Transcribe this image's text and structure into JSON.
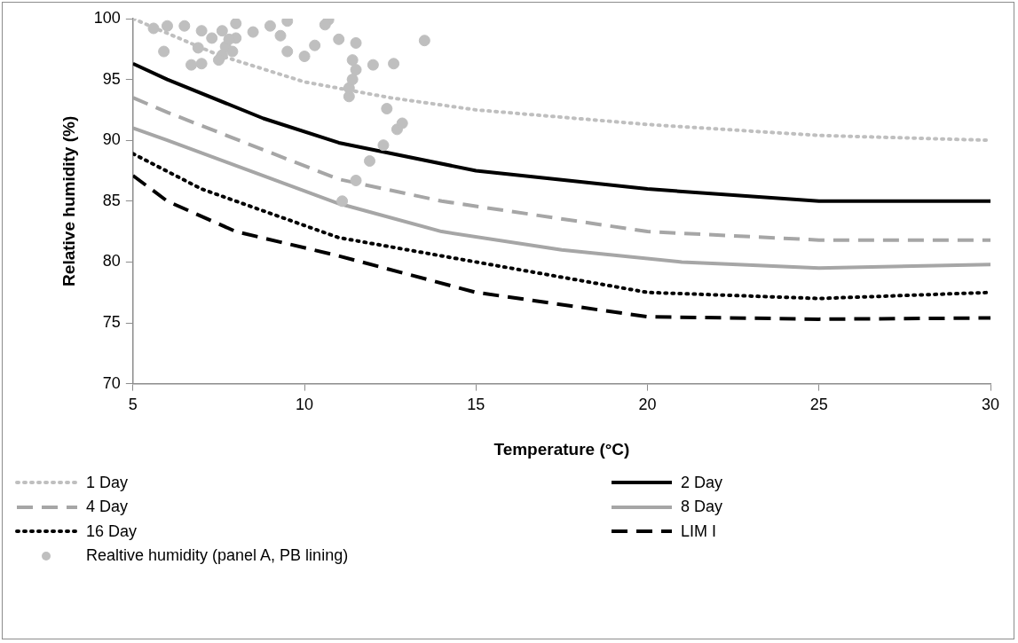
{
  "chart_data": {
    "type": "line",
    "xlabel": "Temperature (°C)",
    "ylabel": "Relative humidity (%)",
    "xlim": [
      5,
      30
    ],
    "xticks": [
      5,
      10,
      15,
      20,
      25,
      30
    ],
    "ylim": [
      70,
      100
    ],
    "yticks": [
      70,
      75,
      80,
      85,
      90,
      95,
      100
    ],
    "grid": false,
    "legend": "bottom",
    "marker": "none",
    "series": [
      {
        "name": "1 Day",
        "color": "#bfbfbf",
        "line_style": "dotted",
        "x": [
          5,
          7.5,
          10,
          12.5,
          15,
          20,
          25,
          30
        ],
        "values": [
          100,
          97,
          94.8,
          93.5,
          92.5,
          91.3,
          90.4,
          90
        ]
      },
      {
        "name": "2 Day",
        "color": "#000000",
        "line_style": "solid",
        "x": [
          5,
          6,
          8.8,
          11,
          15,
          20,
          25,
          30
        ],
        "values": [
          96.3,
          95,
          91.8,
          89.8,
          87.5,
          86,
          85,
          85
        ]
      },
      {
        "name": "4 Day",
        "color": "#a6a6a6",
        "line_style": "dashed",
        "x": [
          5,
          6,
          11,
          14,
          20,
          25,
          30
        ],
        "values": [
          93.5,
          92.3,
          86.8,
          85,
          82.5,
          81.8,
          81.8
        ]
      },
      {
        "name": "8 Day",
        "color": "#a6a6a6",
        "line_style": "solid",
        "x": [
          5,
          6,
          11,
          14,
          17.5,
          21,
          25,
          30
        ],
        "values": [
          91,
          90,
          84.8,
          82.5,
          81,
          80,
          79.5,
          79.8
        ]
      },
      {
        "name": "16 Day",
        "color": "#000000",
        "line_style": "dotted",
        "x": [
          5,
          7,
          9,
          11,
          15,
          20,
          25,
          30
        ],
        "values": [
          88.9,
          86,
          84,
          82,
          80,
          77.5,
          77,
          77.5
        ]
      },
      {
        "name": "LIM I",
        "color": "#000000",
        "line_style": "dashed",
        "x": [
          5,
          6,
          8,
          11,
          15,
          20,
          25,
          30
        ],
        "values": [
          87.1,
          85,
          82.5,
          80.5,
          77.5,
          75.5,
          75.3,
          75.4
        ]
      },
      {
        "name": "Realtive humidity (panel A, PB lining)",
        "type": "scatter",
        "marker": "circle",
        "color": "#bfbfbf",
        "x": [
          11.1,
          11.5,
          11.9,
          12.3,
          12.7,
          12.85,
          12.4,
          11.3,
          11.3,
          11.4,
          11.5,
          12,
          12.6,
          11.4,
          10,
          9.5,
          10.3,
          11.5,
          13.5,
          11,
          9.3,
          8.5,
          8,
          7.7,
          7.6,
          7,
          6.7,
          7.5,
          7.9,
          5.9,
          7.8,
          7.6,
          6,
          5.6,
          6.5,
          8,
          9.5,
          10.7,
          10.6,
          9,
          7,
          7.3,
          6.9
        ],
        "values": [
          85,
          86.7,
          88.3,
          89.6,
          90.9,
          91.4,
          92.6,
          93.6,
          94.3,
          95,
          95.8,
          96.2,
          96.3,
          96.6,
          96.9,
          97.3,
          97.8,
          98,
          98.2,
          98.3,
          98.6,
          98.9,
          98.4,
          97.7,
          97,
          96.3,
          96.2,
          96.6,
          97.3,
          97.3,
          98.3,
          99,
          99.4,
          99.2,
          99.4,
          99.6,
          99.8,
          99.9,
          99.5,
          99.4,
          99,
          98.4,
          97.6
        ]
      }
    ]
  }
}
